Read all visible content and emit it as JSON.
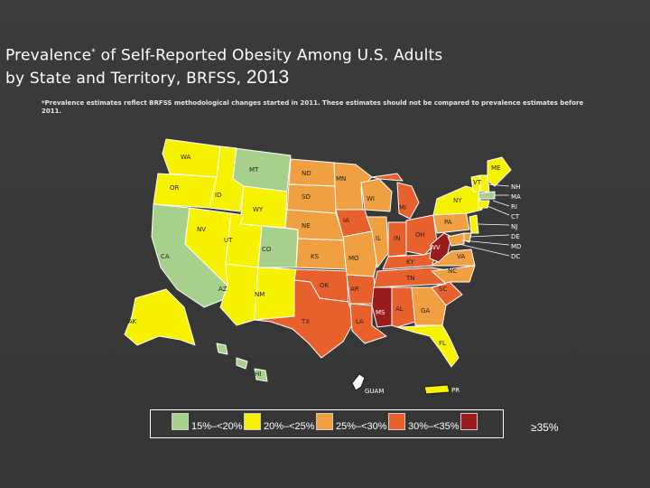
{
  "title": {
    "line1_prefix": "Prevalence",
    "asterisk": "*",
    "line1_rest": " of Self-Reported Obesity Among U.S. Adults",
    "line2": "by State and Territory, BRFSS,",
    "year": "2013"
  },
  "footnote": "*Prevalence estimates reflect BRFSS methodological changes started in 2011. These estimates should not be compared to prevalence estimates before 2011.",
  "colors": {
    "c1": "#a7d08c",
    "c2": "#f7f200",
    "c3": "#f0a040",
    "c4": "#e8602c",
    "c5": "#9a1b1b",
    "lightgreen": "#c9e6b0",
    "outline": "#ffffff"
  },
  "states": {
    "WA": "WA",
    "OR": "OR",
    "CA": "CA",
    "ID": "ID",
    "NV": "NV",
    "MT": "MT",
    "WY": "WY",
    "UT": "UT",
    "AZ": "AZ",
    "CO": "CO",
    "NM": "NM",
    "ND": "ND",
    "SD": "SD",
    "NE": "NE",
    "KS": "KS",
    "OK": "OK",
    "TX": "TX",
    "MN": "MN",
    "IA": "IA",
    "MO": "MO",
    "AR": "AR",
    "LA": "LA",
    "WI": "WI",
    "IL": "IL",
    "MI": "MI",
    "IN": "IN",
    "OH": "OH",
    "KY": "KY",
    "TN": "TN",
    "MS": "MS",
    "AL": "AL",
    "GA": "GA",
    "FL": "FL",
    "SC": "SC",
    "NC": "NC",
    "VA": "VA",
    "WV": "WV",
    "PA": "PA",
    "NY": "NY",
    "ME": "ME",
    "VT": "VT",
    "AK": "AK",
    "HI": "HI"
  },
  "northeast_labels": [
    "NH",
    "MA",
    "RI",
    "CT",
    "NJ",
    "DE",
    "MD",
    "DC"
  ],
  "territories": {
    "guam": "GUAM",
    "pr": "PR"
  },
  "legend": {
    "items": [
      {
        "label": "15%–<20%",
        "color": "#a7d08c"
      },
      {
        "label": "20%–<25%",
        "color": "#f7f200"
      },
      {
        "label": "25%–<30%",
        "color": "#f0a040"
      },
      {
        "label": "30%–<35%",
        "color": "#e8602c"
      },
      {
        "label": "≥35%",
        "color": "#9a1b1b"
      }
    ]
  }
}
